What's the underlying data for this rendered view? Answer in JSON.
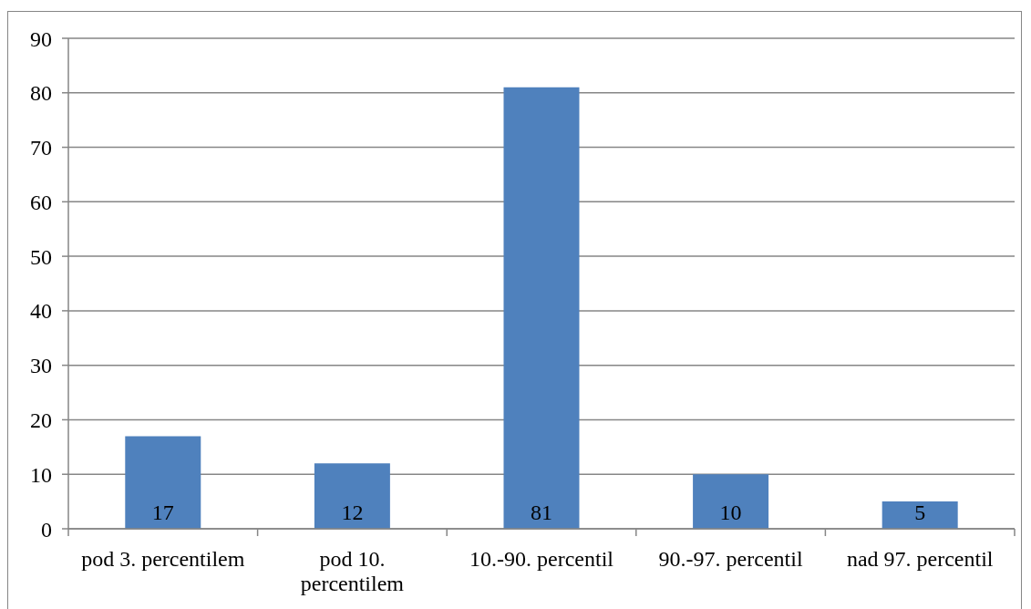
{
  "chart_data": {
    "type": "bar",
    "categories": [
      "pod 3. percentilem",
      "pod 10. percentilem",
      "10.-90. percentil",
      "90.-97. percentil",
      "nad 97. percentil"
    ],
    "values": [
      17,
      12,
      81,
      10,
      5
    ],
    "color": "#4f81bd",
    "ylim": [
      0,
      90
    ],
    "yticks": [
      0,
      10,
      20,
      30,
      40,
      50,
      60,
      70,
      80,
      90
    ],
    "grid": "y",
    "data_labels": true
  }
}
